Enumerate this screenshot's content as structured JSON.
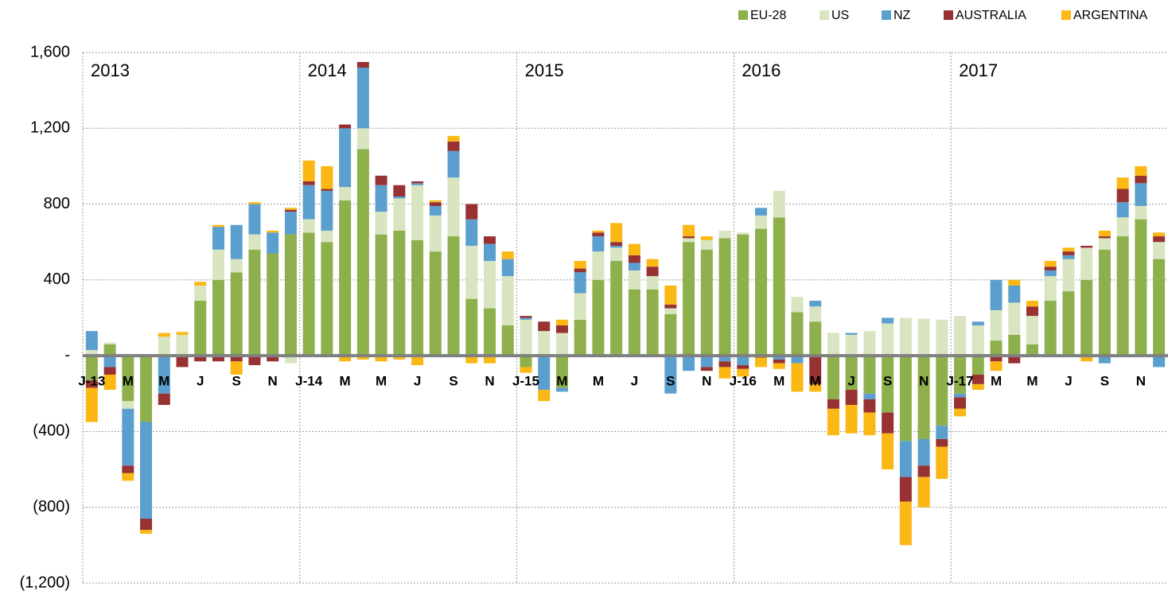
{
  "chart_data": {
    "type": "bar",
    "stacked": true,
    "categories": [
      "J-13",
      null,
      "M",
      null,
      "M",
      null,
      "J",
      null,
      "S",
      null,
      "N",
      null,
      "J-14",
      null,
      "M",
      null,
      "M",
      null,
      "J",
      null,
      "S",
      null,
      "N",
      null,
      "J-15",
      null,
      "M",
      null,
      "M",
      null,
      "J",
      null,
      "S",
      null,
      "N",
      null,
      "J-16",
      null,
      "M",
      null,
      "M",
      null,
      "J",
      null,
      "S",
      null,
      "N",
      null,
      "J-17",
      null,
      "M",
      null,
      "M",
      null,
      "J",
      null,
      "S",
      null,
      "N",
      null
    ],
    "annotations": [
      "2013",
      "2014",
      "2015",
      "2016",
      "2017"
    ],
    "series": [
      {
        "name": "EU-28",
        "color": "#8db04c",
        "values": [
          -130,
          60,
          -240,
          -350,
          0,
          0,
          290,
          400,
          440,
          560,
          540,
          640,
          650,
          600,
          820,
          1090,
          640,
          660,
          610,
          550,
          630,
          300,
          250,
          160,
          -60,
          0,
          -170,
          190,
          400,
          500,
          350,
          350,
          220,
          600,
          560,
          620,
          640,
          670,
          730,
          230,
          180,
          -230,
          -180,
          -200,
          -300,
          -450,
          -440,
          -370,
          -200,
          -100,
          80,
          110,
          60,
          290,
          340,
          400,
          560,
          630,
          720,
          510
        ]
      },
      {
        "name": "US",
        "color": "#d8e5c0",
        "values": [
          30,
          10,
          -40,
          0,
          100,
          110,
          80,
          160,
          70,
          80,
          0,
          -40,
          70,
          60,
          70,
          110,
          120,
          170,
          290,
          190,
          310,
          280,
          250,
          260,
          190,
          130,
          120,
          140,
          150,
          70,
          100,
          70,
          30,
          20,
          50,
          40,
          10,
          70,
          140,
          80,
          80,
          120,
          110,
          130,
          170,
          200,
          195,
          190,
          210,
          160,
          160,
          170,
          150,
          130,
          170,
          170,
          60,
          100,
          70,
          90
        ]
      },
      {
        "name": "NZ",
        "color": "#5b9fcf",
        "values": [
          100,
          -60,
          -300,
          -510,
          -200,
          0,
          0,
          120,
          180,
          160,
          110,
          120,
          180,
          210,
          310,
          320,
          140,
          10,
          10,
          50,
          140,
          140,
          90,
          90,
          10,
          -180,
          -20,
          110,
          80,
          10,
          40,
          0,
          -200,
          -80,
          -60,
          -30,
          -50,
          40,
          -20,
          -40,
          30,
          0,
          10,
          -30,
          30,
          -190,
          -140,
          -70,
          -20,
          20,
          160,
          90,
          0,
          30,
          20,
          0,
          -40,
          80,
          120,
          -60
        ]
      },
      {
        "name": "AUSTRALIA",
        "color": "#983232",
        "values": [
          -40,
          -40,
          -40,
          -60,
          -60,
          -60,
          -30,
          -30,
          -30,
          -50,
          -30,
          10,
          20,
          10,
          20,
          30,
          50,
          60,
          10,
          20,
          50,
          80,
          40,
          0,
          10,
          50,
          40,
          20,
          20,
          20,
          40,
          50,
          20,
          10,
          -20,
          -30,
          -20,
          -10,
          -20,
          0,
          -150,
          -50,
          -80,
          -70,
          -110,
          -130,
          -60,
          -40,
          -60,
          -50,
          -30,
          -40,
          50,
          20,
          20,
          10,
          10,
          70,
          40,
          30
        ]
      },
      {
        "name": "ARGENTINA",
        "color": "#fbb714",
        "values": [
          -180,
          -80,
          -40,
          -20,
          20,
          15,
          20,
          10,
          -70,
          10,
          10,
          10,
          110,
          120,
          -30,
          -20,
          -30,
          -20,
          -50,
          10,
          30,
          -40,
          -40,
          40,
          -30,
          -60,
          30,
          40,
          10,
          100,
          60,
          40,
          100,
          60,
          20,
          -60,
          -40,
          -50,
          -30,
          -150,
          -40,
          -140,
          -150,
          -120,
          -190,
          -230,
          -160,
          -170,
          -40,
          -30,
          -50,
          30,
          30,
          30,
          20,
          -30,
          30,
          60,
          50,
          20
        ]
      }
    ],
    "ylim": [
      -1200,
      1600
    ],
    "yticks": [
      {
        "value": -1200,
        "label": "(1,200)"
      },
      {
        "value": -800,
        "label": "(800)"
      },
      {
        "value": -400,
        "label": "(400)"
      },
      {
        "value": 0,
        "label": "-"
      },
      400,
      800,
      {
        "value": 1200,
        "label": "1,200"
      },
      {
        "value": 1600,
        "label": "1,600"
      }
    ],
    "grid": true,
    "legend": "top-right"
  }
}
